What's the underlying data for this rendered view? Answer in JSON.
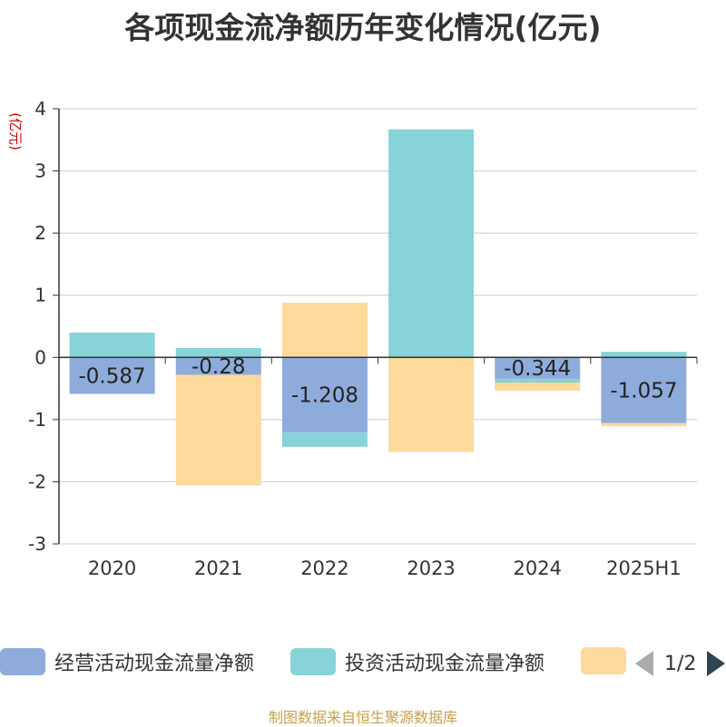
{
  "chart_data": {
    "type": "bar",
    "stacked": true,
    "title": "各项现金流净额历年变化情况(亿元)",
    "ylabel": "(亿元)",
    "ylim": [
      -3,
      4
    ],
    "yticks": [
      4,
      3,
      2,
      1,
      0,
      -1,
      -2,
      -3
    ],
    "grid": true,
    "legend_position": "bottom",
    "categories": [
      "2020",
      "2021",
      "2022",
      "2023",
      "2024",
      "2025H1"
    ],
    "series": [
      {
        "name": "经营活动现金流量净额",
        "color": "#8eacdb",
        "values": [
          -0.587,
          -0.28,
          -1.208,
          0,
          -0.344,
          -1.057
        ],
        "labels": [
          "-0.587",
          "-0.28",
          "-1.208",
          "",
          "-0.344",
          "-1.057"
        ]
      },
      {
        "name": "投资活动现金流量净额",
        "color": "#86d4d8",
        "values": [
          0.4,
          0.15,
          -0.23,
          3.67,
          -0.06,
          0.09
        ]
      },
      {
        "name": "",
        "color": "#fdd99b",
        "values": [
          0,
          -1.78,
          0.88,
          -1.52,
          -0.13,
          -0.05
        ]
      }
    ]
  },
  "legend": {
    "page": "1/2"
  },
  "source_note": "制图数据来自恒生聚源数据库"
}
